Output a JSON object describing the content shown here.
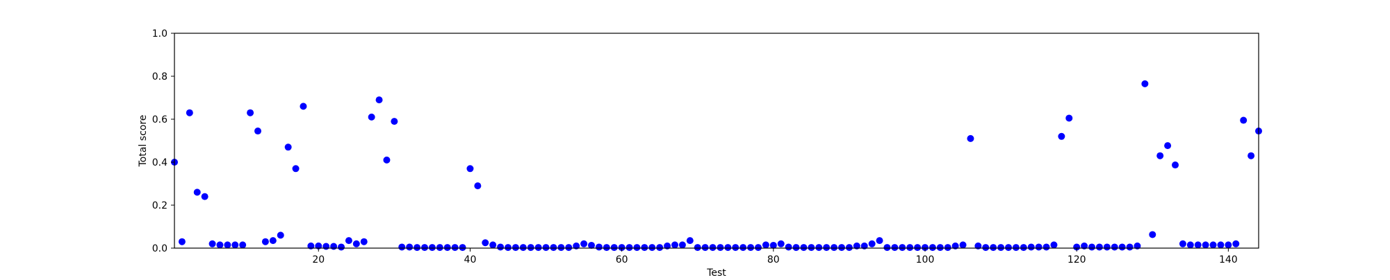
{
  "chart_data": {
    "type": "scatter",
    "title": "",
    "xlabel": "Test",
    "ylabel": "Total score",
    "xlim": [
      1,
      144
    ],
    "ylim": [
      0,
      1.0
    ],
    "x_ticks": [
      20,
      40,
      60,
      80,
      100,
      120,
      140
    ],
    "y_ticks": [
      0.0,
      0.2,
      0.4,
      0.6,
      0.8,
      1.0
    ],
    "y_tick_labels": [
      "0.0",
      "0.2",
      "0.4",
      "0.6",
      "0.8",
      "1.0"
    ],
    "grid": false,
    "marker_color": "#0000ff",
    "series": [
      {
        "x": [
          1,
          2,
          3,
          4,
          5,
          6,
          7,
          8,
          9,
          10,
          11,
          12,
          13,
          14,
          15,
          16,
          17,
          18,
          19,
          20,
          21,
          22,
          23,
          24,
          25,
          26,
          27,
          28,
          29,
          30,
          31,
          32,
          33,
          34,
          35,
          36,
          37,
          38,
          39,
          40,
          41,
          42,
          43,
          44,
          45,
          46,
          47,
          48,
          49,
          50,
          51,
          52,
          53,
          54,
          55,
          56,
          57,
          58,
          59,
          60,
          61,
          62,
          63,
          64,
          65,
          66,
          67,
          68,
          69,
          70,
          71,
          72,
          73,
          74,
          75,
          76,
          77,
          78,
          79,
          80,
          81,
          82,
          83,
          84,
          85,
          86,
          87,
          88,
          89,
          90,
          91,
          92,
          93,
          94,
          95,
          96,
          97,
          98,
          99,
          100,
          101,
          102,
          103,
          104,
          105,
          106,
          107,
          108,
          109,
          110,
          111,
          112,
          113,
          114,
          115,
          116,
          117,
          118,
          119,
          120,
          121,
          122,
          123,
          124,
          125,
          126,
          127,
          128,
          129,
          130,
          131,
          132,
          133,
          134,
          135,
          136,
          137,
          138,
          139,
          140,
          141,
          142,
          143,
          144
        ],
        "y": [
          0.4,
          0.03,
          0.63,
          0.26,
          0.24,
          0.02,
          0.015,
          0.015,
          0.015,
          0.015,
          0.63,
          0.545,
          0.03,
          0.035,
          0.06,
          0.47,
          0.37,
          0.66,
          0.01,
          0.01,
          0.008,
          0.008,
          0.005,
          0.035,
          0.02,
          0.03,
          0.61,
          0.69,
          0.41,
          0.59,
          0.005,
          0.005,
          0.003,
          0.003,
          0.003,
          0.003,
          0.003,
          0.003,
          0.003,
          0.37,
          0.29,
          0.025,
          0.015,
          0.005,
          0.003,
          0.003,
          0.003,
          0.003,
          0.003,
          0.003,
          0.003,
          0.003,
          0.003,
          0.01,
          0.02,
          0.013,
          0.005,
          0.003,
          0.003,
          0.003,
          0.003,
          0.003,
          0.003,
          0.003,
          0.003,
          0.01,
          0.015,
          0.015,
          0.035,
          0.003,
          0.003,
          0.003,
          0.003,
          0.003,
          0.003,
          0.003,
          0.003,
          0.003,
          0.015,
          0.013,
          0.02,
          0.005,
          0.003,
          0.003,
          0.003,
          0.003,
          0.003,
          0.003,
          0.003,
          0.003,
          0.01,
          0.01,
          0.02,
          0.035,
          0.003,
          0.003,
          0.003,
          0.003,
          0.003,
          0.003,
          0.003,
          0.003,
          0.003,
          0.01,
          0.015,
          0.51,
          0.01,
          0.003,
          0.003,
          0.003,
          0.003,
          0.003,
          0.003,
          0.005,
          0.005,
          0.005,
          0.015,
          0.52,
          0.605,
          0.005,
          0.01,
          0.005,
          0.005,
          0.005,
          0.005,
          0.005,
          0.005,
          0.01,
          0.765,
          0.063,
          0.43,
          0.477,
          0.387,
          0.02,
          0.015,
          0.015,
          0.015,
          0.015,
          0.015,
          0.015,
          0.02,
          0.595,
          0.43,
          0.545
        ]
      }
    ]
  }
}
